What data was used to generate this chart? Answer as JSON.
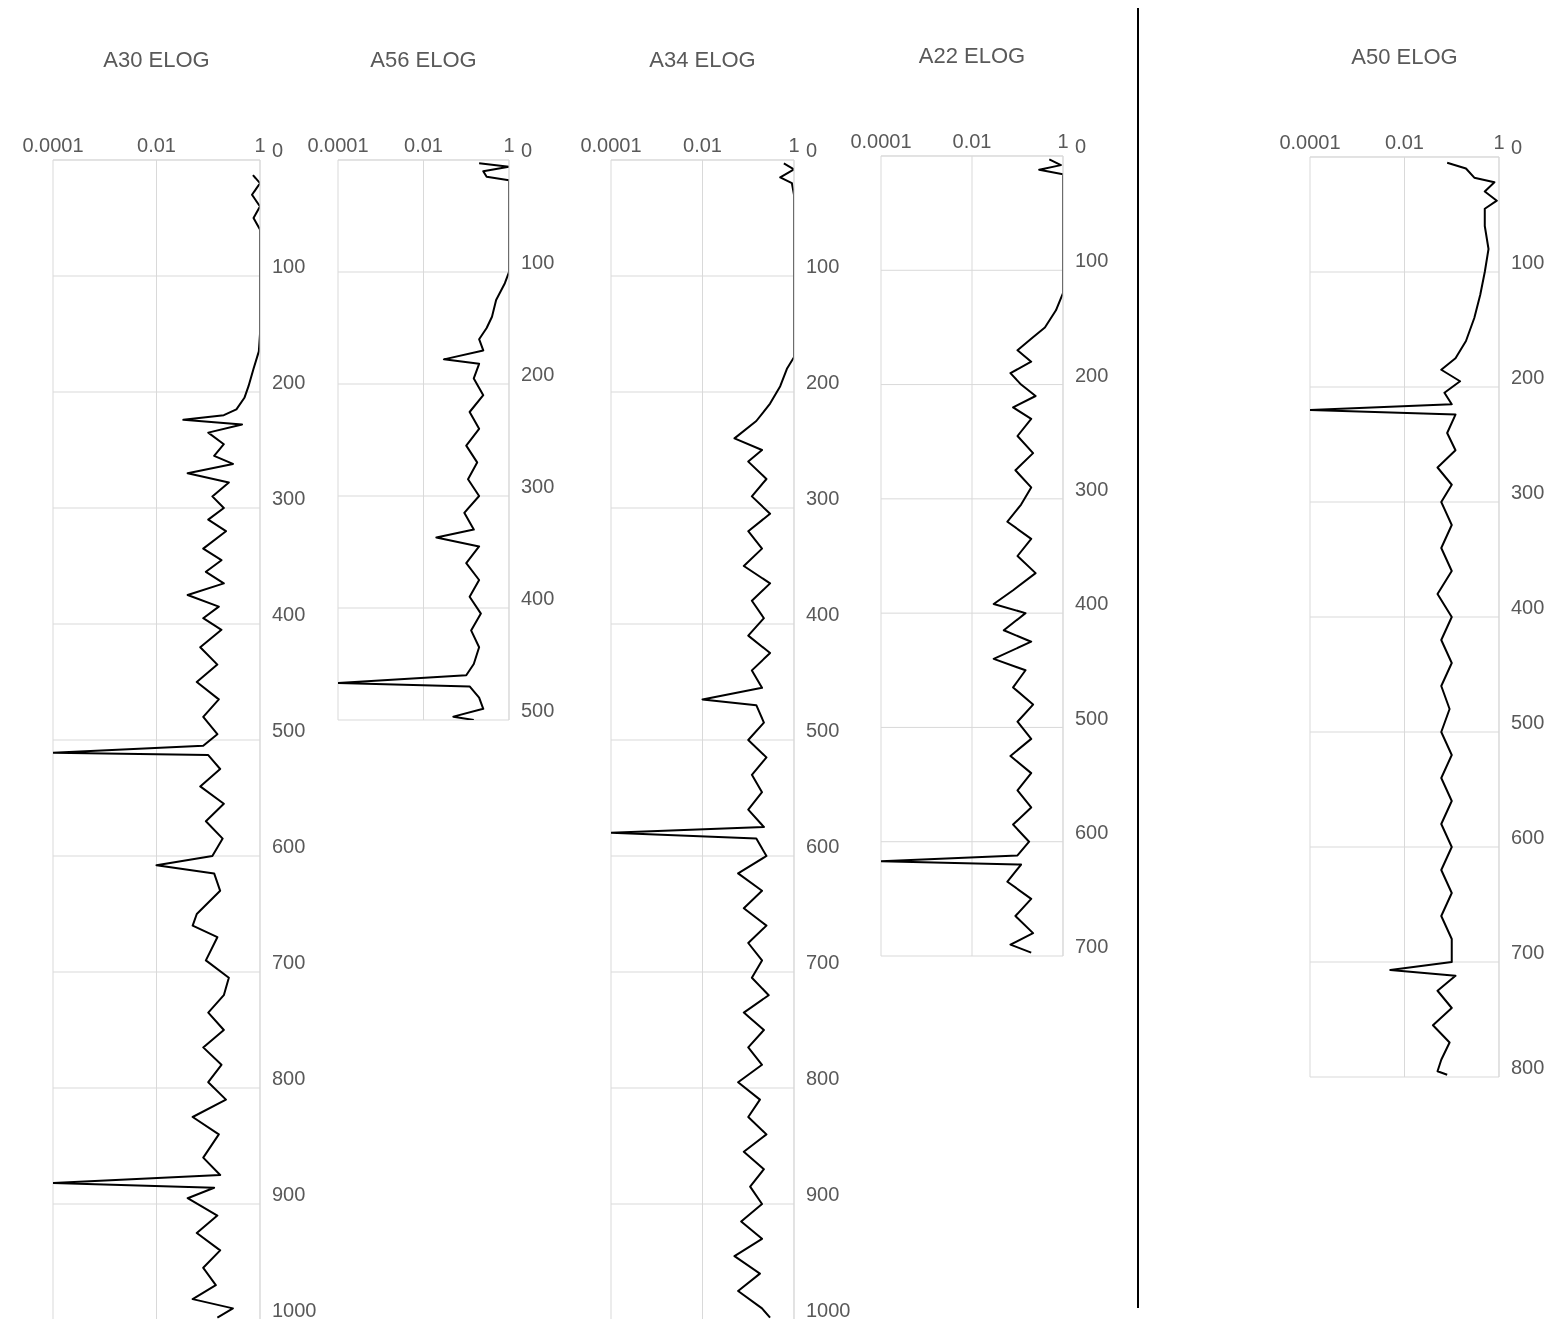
{
  "chart_data": [
    {
      "type": "line",
      "title": "A30 ELOG",
      "log": "x",
      "grid": true,
      "xlim": [
        0.0001,
        1
      ],
      "xticks": [
        0.0001,
        0.01,
        1
      ],
      "ylim": [
        1000,
        0
      ],
      "yticks": [
        0,
        100,
        200,
        300,
        400,
        500,
        600,
        700,
        800,
        900,
        1000
      ],
      "series": [
        {
          "color": "#000000",
          "x": [
            0.73,
            1,
            0.7,
            1,
            0.75,
            1,
            1,
            0.95,
            0.75,
            0.6,
            0.5,
            0.35,
            0.2,
            0.033,
            0.45,
            0.1,
            0.2,
            0.13,
            0.3,
            0.04,
            0.25,
            0.12,
            0.2,
            0.1,
            0.22,
            0.08,
            0.18,
            0.09,
            0.2,
            0.04,
            0.16,
            0.08,
            0.18,
            0.07,
            0.15,
            0.06,
            0.16,
            0.08,
            0.15,
            0.08,
            0.0001,
            0.1,
            0.17,
            0.07,
            0.2,
            0.09,
            0.19,
            0.12,
            0.01,
            0.13,
            0.17,
            0.06,
            0.05,
            0.15,
            0.09,
            0.25,
            0.2,
            0.1,
            0.2,
            0.08,
            0.18,
            0.1,
            0.22,
            0.05,
            0.16,
            0.08,
            0.17,
            0.0001,
            0.13,
            0.04,
            0.15,
            0.06,
            0.17,
            0.08,
            0.14,
            0.05,
            0.3,
            0.15
          ],
          "values": [
            13,
            20,
            30,
            40,
            50,
            60,
            150,
            165,
            180,
            195,
            205,
            215,
            220,
            224,
            228,
            235,
            245,
            255,
            262,
            270,
            278,
            290,
            300,
            310,
            320,
            335,
            345,
            355,
            365,
            375,
            385,
            395,
            405,
            420,
            435,
            450,
            465,
            480,
            495,
            505,
            511,
            513,
            525,
            540,
            555,
            570,
            585,
            600,
            608,
            615,
            630,
            650,
            660,
            670,
            690,
            705,
            720,
            735,
            750,
            765,
            780,
            795,
            810,
            825,
            840,
            860,
            875,
            882,
            886,
            895,
            910,
            925,
            940,
            955,
            970,
            982,
            990,
            998
          ]
        }
      ]
    },
    {
      "type": "line",
      "title": "A56 ELOG",
      "log": "x",
      "grid": true,
      "xlim": [
        0.0001,
        1
      ],
      "xticks": [
        0.0001,
        0.01,
        1
      ],
      "ylim": [
        500,
        0
      ],
      "yticks": [
        0,
        100,
        200,
        300,
        400,
        500
      ],
      "series": [
        {
          "color": "#000000",
          "x": [
            0.2,
            1,
            0.25,
            0.3,
            1,
            1,
            0.8,
            0.5,
            0.4,
            0.3,
            0.2,
            0.25,
            0.03,
            0.2,
            0.15,
            0.25,
            0.12,
            0.2,
            0.1,
            0.18,
            0.11,
            0.2,
            0.09,
            0.15,
            0.02,
            0.2,
            0.1,
            0.2,
            0.12,
            0.22,
            0.13,
            0.2,
            0.15,
            0.1,
            0.0001,
            0.12,
            0.2,
            0.25,
            0.05,
            0.15
          ],
          "values": [
            3,
            6,
            10,
            15,
            18,
            100,
            110,
            125,
            140,
            150,
            160,
            170,
            178,
            182,
            195,
            210,
            225,
            240,
            255,
            270,
            285,
            300,
            315,
            330,
            337,
            345,
            360,
            375,
            390,
            405,
            420,
            435,
            450,
            460,
            467,
            470,
            480,
            490,
            497,
            500
          ]
        }
      ]
    },
    {
      "type": "line",
      "title": "A34 ELOG",
      "log": "x",
      "grid": true,
      "xlim": [
        0.0001,
        1
      ],
      "xticks": [
        0.0001,
        0.01,
        1
      ],
      "ylim": [
        1000,
        0
      ],
      "yticks": [
        0,
        100,
        200,
        300,
        400,
        500,
        600,
        700,
        800,
        900,
        1000
      ],
      "series": [
        {
          "color": "#000000",
          "x": [
            0.6,
            1,
            0.5,
            0.9,
            1,
            1,
            0.7,
            0.5,
            0.3,
            0.15,
            0.05,
            0.2,
            0.1,
            0.25,
            0.12,
            0.3,
            0.1,
            0.2,
            0.08,
            0.3,
            0.12,
            0.22,
            0.1,
            0.3,
            0.12,
            0.2,
            0.01,
            0.15,
            0.22,
            0.1,
            0.25,
            0.12,
            0.2,
            0.1,
            0.22,
            0.0001,
            0.15,
            0.25,
            0.06,
            0.2,
            0.08,
            0.25,
            0.1,
            0.2,
            0.12,
            0.28,
            0.08,
            0.22,
            0.1,
            0.2,
            0.06,
            0.18,
            0.1,
            0.25,
            0.08,
            0.22,
            0.11,
            0.2,
            0.07,
            0.2,
            0.05,
            0.18,
            0.06,
            0.2,
            0.3
          ],
          "values": [
            3,
            8,
            15,
            20,
            30,
            170,
            180,
            195,
            210,
            225,
            240,
            250,
            260,
            275,
            290,
            305,
            320,
            335,
            350,
            365,
            380,
            395,
            410,
            425,
            440,
            455,
            465,
            470,
            485,
            500,
            515,
            530,
            545,
            560,
            575,
            580,
            585,
            600,
            615,
            630,
            645,
            660,
            675,
            690,
            705,
            720,
            735,
            750,
            765,
            780,
            795,
            810,
            825,
            840,
            855,
            870,
            885,
            900,
            915,
            930,
            945,
            960,
            975,
            990,
            998
          ]
        }
      ]
    },
    {
      "type": "line",
      "title": "A22 ELOG",
      "log": "x",
      "grid": true,
      "xlim": [
        0.0001,
        1
      ],
      "xticks": [
        0.0001,
        0.01,
        1
      ],
      "ylim": [
        700,
        0
      ],
      "yticks": [
        0,
        100,
        200,
        300,
        400,
        500,
        600,
        700
      ],
      "series": [
        {
          "color": "#000000",
          "x": [
            0.5,
            0.9,
            0.3,
            1,
            1,
            0.7,
            0.4,
            0.2,
            0.1,
            0.2,
            0.07,
            0.12,
            0.25,
            0.08,
            0.2,
            0.1,
            0.22,
            0.09,
            0.2,
            0.12,
            0.06,
            0.2,
            0.1,
            0.25,
            0.08,
            0.03,
            0.15,
            0.05,
            0.2,
            0.03,
            0.15,
            0.08,
            0.22,
            0.1,
            0.2,
            0.07,
            0.2,
            0.1,
            0.2,
            0.08,
            0.18,
            0.1,
            0.0001,
            0.12,
            0.06,
            0.2,
            0.09,
            0.22,
            0.07,
            0.2
          ],
          "values": [
            3,
            8,
            12,
            16,
            120,
            135,
            150,
            160,
            170,
            180,
            190,
            200,
            210,
            220,
            230,
            245,
            260,
            275,
            290,
            305,
            320,
            335,
            350,
            365,
            380,
            392,
            400,
            415,
            425,
            440,
            450,
            465,
            480,
            495,
            510,
            525,
            540,
            555,
            570,
            585,
            600,
            612,
            617,
            620,
            635,
            650,
            665,
            680,
            690,
            697
          ]
        }
      ]
    },
    {
      "type": "line",
      "title": "A50 ELOG",
      "log": "x",
      "grid": true,
      "xlim": [
        0.0001,
        1
      ],
      "xticks": [
        0.0001,
        0.01,
        1
      ],
      "ylim": [
        800,
        0
      ],
      "yticks": [
        0,
        100,
        200,
        300,
        400,
        500,
        600,
        700,
        800
      ],
      "series": [
        {
          "color": "#000000",
          "x": [
            0.08,
            0.2,
            0.3,
            0.8,
            0.5,
            0.9,
            0.5,
            0.5,
            0.6,
            0.5,
            0.4,
            0.3,
            0.2,
            0.12,
            0.06,
            0.15,
            0.07,
            0.1,
            0.0001,
            0.12,
            0.08,
            0.12,
            0.05,
            0.1,
            0.06,
            0.1,
            0.06,
            0.1,
            0.05,
            0.1,
            0.06,
            0.1,
            0.06,
            0.09,
            0.06,
            0.1,
            0.06,
            0.1,
            0.06,
            0.1,
            0.06,
            0.1,
            0.06,
            0.1,
            0.1,
            0.005,
            0.12,
            0.05,
            0.1,
            0.04,
            0.09,
            0.06,
            0.05,
            0.08
          ],
          "values": [
            5,
            10,
            18,
            22,
            30,
            38,
            45,
            60,
            80,
            100,
            120,
            140,
            160,
            175,
            185,
            195,
            205,
            215,
            220,
            224,
            240,
            255,
            270,
            285,
            300,
            320,
            340,
            360,
            380,
            400,
            420,
            440,
            460,
            480,
            500,
            520,
            540,
            560,
            580,
            600,
            620,
            640,
            660,
            680,
            700,
            707,
            712,
            725,
            740,
            755,
            770,
            785,
            795,
            798
          ]
        }
      ]
    }
  ]
}
